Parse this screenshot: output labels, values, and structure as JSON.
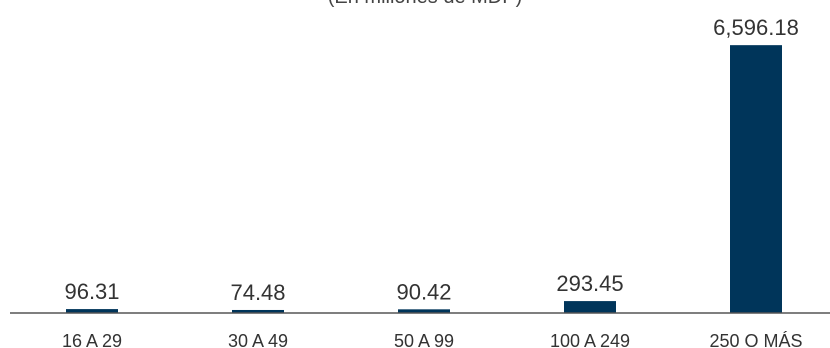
{
  "chart_data": {
    "type": "bar",
    "subtitle": "(En millones de MDP)",
    "categories": [
      "16 A 29",
      "30 A 49",
      "50 A 99",
      "100 A 249",
      "250 O MÁS"
    ],
    "values": [
      96.31,
      74.48,
      90.42,
      293.45,
      6596.18
    ],
    "value_labels": [
      "96.31",
      "74.48",
      "90.42",
      "293.45",
      "6,596.18"
    ],
    "ylim": [
      0,
      6600
    ],
    "grid": false,
    "legend": "none",
    "bar_color": "#00355a",
    "axis_color": "#555555"
  }
}
